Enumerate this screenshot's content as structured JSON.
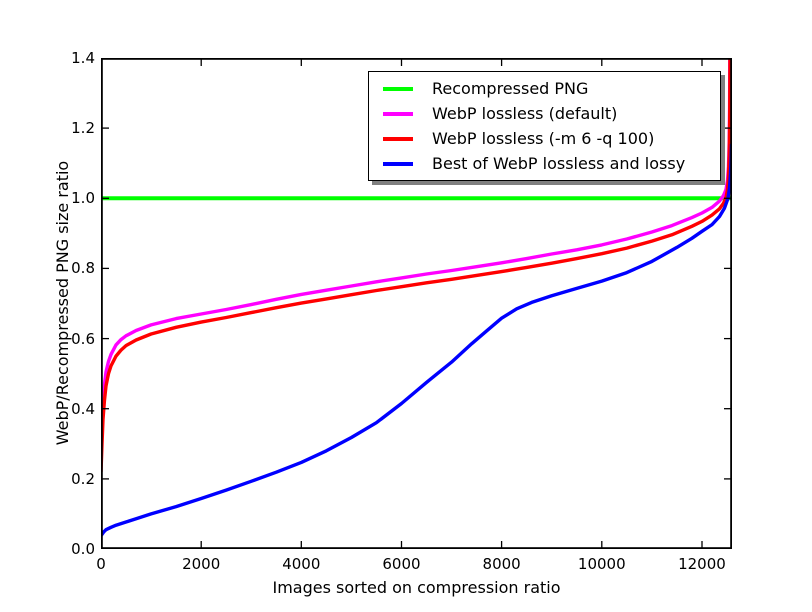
{
  "chart_data": {
    "type": "line",
    "title": "",
    "xlabel": "Images sorted on compression ratio",
    "ylabel": "WebP/Recompressed PNG size ratio",
    "xlim": [
      0,
      12600
    ],
    "ylim": [
      0.0,
      1.4
    ],
    "x_ticks": [
      0,
      2000,
      4000,
      6000,
      8000,
      10000,
      12000
    ],
    "x_tick_labels": [
      "0",
      "2000",
      "4000",
      "6000",
      "8000",
      "10000",
      "12000"
    ],
    "y_ticks": [
      0.0,
      0.2,
      0.4,
      0.6,
      0.8,
      1.0,
      1.2,
      1.4
    ],
    "y_tick_labels": [
      "0.0",
      "0.2",
      "0.4",
      "0.6",
      "0.8",
      "1.0",
      "1.2",
      "1.4"
    ],
    "grid": false,
    "legend_position": "upper center-right, boxed with gray drop shadow",
    "axes_frame_color": "#000000",
    "series": [
      {
        "name": "Recompressed PNG",
        "color": "#00ff00",
        "linewidth": 4,
        "points": [
          [
            0,
            1.0
          ],
          [
            12597,
            1.0
          ]
        ]
      },
      {
        "name": "WebP lossless (default)",
        "color": "#ff00ff",
        "linewidth": 3.4,
        "points": [
          [
            0,
            0.25
          ],
          [
            20,
            0.34
          ],
          [
            40,
            0.42
          ],
          [
            70,
            0.47
          ],
          [
            100,
            0.505
          ],
          [
            150,
            0.535
          ],
          [
            200,
            0.555
          ],
          [
            300,
            0.582
          ],
          [
            400,
            0.597
          ],
          [
            500,
            0.608
          ],
          [
            700,
            0.623
          ],
          [
            1000,
            0.639
          ],
          [
            1500,
            0.657
          ],
          [
            2000,
            0.67
          ],
          [
            2500,
            0.683
          ],
          [
            3000,
            0.697
          ],
          [
            3500,
            0.712
          ],
          [
            4000,
            0.726
          ],
          [
            4500,
            0.738
          ],
          [
            5000,
            0.75
          ],
          [
            5500,
            0.762
          ],
          [
            6000,
            0.773
          ],
          [
            6500,
            0.784
          ],
          [
            7000,
            0.794
          ],
          [
            7500,
            0.805
          ],
          [
            8000,
            0.816
          ],
          [
            8500,
            0.828
          ],
          [
            9000,
            0.841
          ],
          [
            9500,
            0.853
          ],
          [
            10000,
            0.867
          ],
          [
            10500,
            0.884
          ],
          [
            11000,
            0.904
          ],
          [
            11400,
            0.922
          ],
          [
            11800,
            0.945
          ],
          [
            12000,
            0.958
          ],
          [
            12200,
            0.974
          ],
          [
            12350,
            0.992
          ],
          [
            12430,
            1.008
          ],
          [
            12480,
            1.025
          ],
          [
            12510,
            1.05
          ],
          [
            12530,
            1.09
          ],
          [
            12545,
            1.16
          ],
          [
            12552,
            1.26
          ],
          [
            12556,
            1.4
          ]
        ]
      },
      {
        "name": "WebP lossless (-m 6 -q 100)",
        "color": "#ff0000",
        "linewidth": 3.4,
        "points": [
          [
            0,
            0.22
          ],
          [
            20,
            0.3
          ],
          [
            40,
            0.37
          ],
          [
            70,
            0.425
          ],
          [
            100,
            0.465
          ],
          [
            150,
            0.5
          ],
          [
            200,
            0.522
          ],
          [
            300,
            0.55
          ],
          [
            400,
            0.567
          ],
          [
            500,
            0.58
          ],
          [
            700,
            0.596
          ],
          [
            1000,
            0.613
          ],
          [
            1500,
            0.632
          ],
          [
            2000,
            0.647
          ],
          [
            2500,
            0.66
          ],
          [
            3000,
            0.674
          ],
          [
            3500,
            0.688
          ],
          [
            4000,
            0.701
          ],
          [
            4500,
            0.713
          ],
          [
            5000,
            0.725
          ],
          [
            5500,
            0.737
          ],
          [
            6000,
            0.748
          ],
          [
            6500,
            0.759
          ],
          [
            7000,
            0.769
          ],
          [
            7500,
            0.78
          ],
          [
            8000,
            0.791
          ],
          [
            8500,
            0.803
          ],
          [
            9000,
            0.815
          ],
          [
            9500,
            0.828
          ],
          [
            10000,
            0.842
          ],
          [
            10500,
            0.858
          ],
          [
            11000,
            0.878
          ],
          [
            11400,
            0.896
          ],
          [
            11800,
            0.92
          ],
          [
            12000,
            0.934
          ],
          [
            12200,
            0.952
          ],
          [
            12350,
            0.97
          ],
          [
            12430,
            0.986
          ],
          [
            12480,
            1.002
          ],
          [
            12510,
            1.025
          ],
          [
            12530,
            1.06
          ],
          [
            12545,
            1.12
          ],
          [
            12554,
            1.22
          ],
          [
            12560,
            1.4
          ]
        ]
      },
      {
        "name": "Best of WebP lossless and lossy",
        "color": "#0000ff",
        "linewidth": 3.4,
        "points": [
          [
            0,
            0.038
          ],
          [
            50,
            0.048
          ],
          [
            100,
            0.055
          ],
          [
            200,
            0.062
          ],
          [
            300,
            0.068
          ],
          [
            500,
            0.077
          ],
          [
            700,
            0.086
          ],
          [
            1000,
            0.1
          ],
          [
            1500,
            0.121
          ],
          [
            2000,
            0.144
          ],
          [
            2500,
            0.168
          ],
          [
            3000,
            0.193
          ],
          [
            3500,
            0.219
          ],
          [
            4000,
            0.247
          ],
          [
            4500,
            0.28
          ],
          [
            5000,
            0.318
          ],
          [
            5500,
            0.36
          ],
          [
            6000,
            0.415
          ],
          [
            6500,
            0.475
          ],
          [
            7000,
            0.533
          ],
          [
            7400,
            0.585
          ],
          [
            7700,
            0.622
          ],
          [
            8000,
            0.658
          ],
          [
            8300,
            0.685
          ],
          [
            8600,
            0.703
          ],
          [
            9000,
            0.722
          ],
          [
            9500,
            0.743
          ],
          [
            10000,
            0.764
          ],
          [
            10500,
            0.788
          ],
          [
            11000,
            0.82
          ],
          [
            11500,
            0.86
          ],
          [
            11800,
            0.886
          ],
          [
            12000,
            0.906
          ],
          [
            12200,
            0.925
          ],
          [
            12350,
            0.948
          ],
          [
            12450,
            0.972
          ],
          [
            12520,
            1.0
          ],
          [
            12550,
            1.03
          ],
          [
            12570,
            1.07
          ],
          [
            12582,
            1.11
          ],
          [
            12590,
            1.155
          ]
        ]
      }
    ]
  }
}
